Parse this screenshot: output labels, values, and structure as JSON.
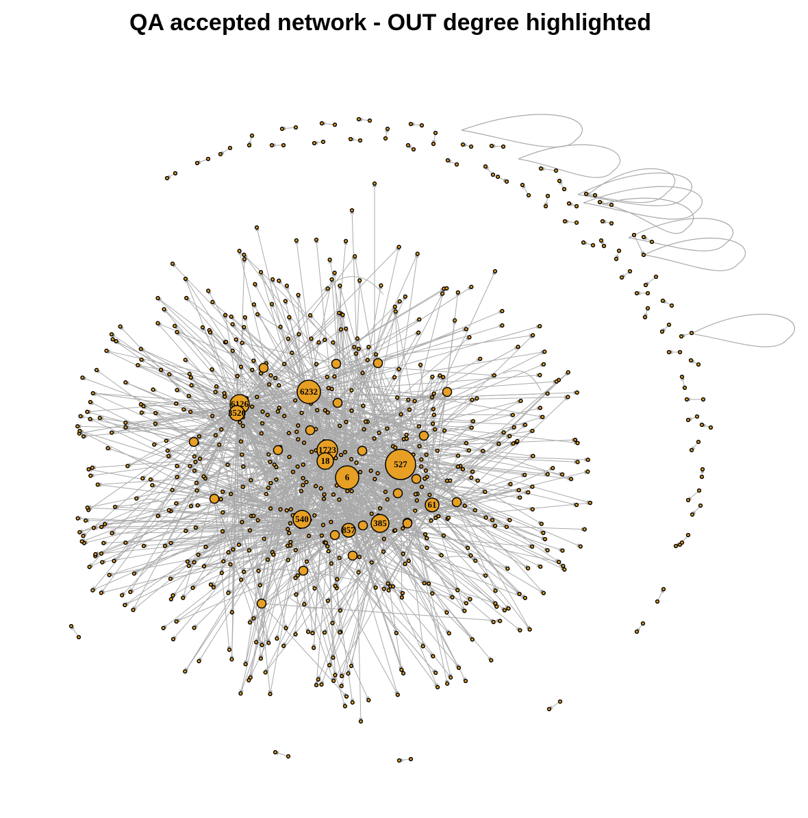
{
  "title": "QA accepted network - OUT degree highlighted",
  "colors": {
    "node_fill": "#E8A024",
    "node_stroke": "#000000",
    "edge": "#A9A9A9",
    "background": "#FFFFFF"
  },
  "hubs": [
    {
      "id": "hub-527",
      "label": "527",
      "rank": 1
    },
    {
      "id": "hub-6232",
      "label": "6232",
      "rank": 2
    },
    {
      "id": "hub-6",
      "label": "6",
      "rank": 3
    },
    {
      "id": "hub-1723",
      "label": "1723",
      "rank": 4
    },
    {
      "id": "hub-18",
      "label": "18",
      "rank": 5
    },
    {
      "id": "hub-540",
      "label": "540",
      "rank": 6
    },
    {
      "id": "hub-385",
      "label": "385",
      "rank": 7
    },
    {
      "id": "hub-6126",
      "label": "6126",
      "rank": 8
    },
    {
      "id": "hub-3526",
      "label": "3526",
      "rank": 9
    },
    {
      "id": "hub-857",
      "label": "857",
      "rank": 10
    },
    {
      "id": "hub-61",
      "label": "61",
      "rank": 11
    }
  ]
}
